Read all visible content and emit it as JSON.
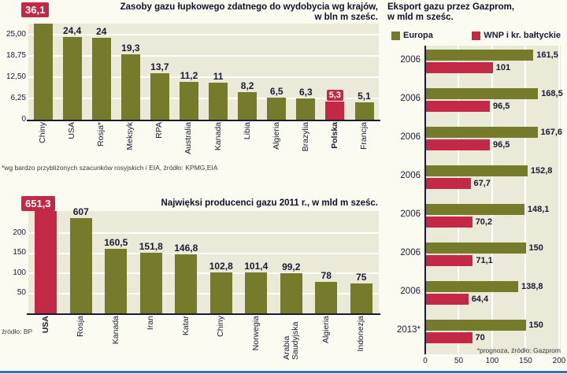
{
  "colors": {
    "olive": "#767a2b",
    "red": "#c32847",
    "plot_bg": "#ebe9d8",
    "text": "#1a1a33",
    "rule_blue": "#3470c2"
  },
  "chart_data": [
    {
      "id": "shale-gas-reserves",
      "type": "bar",
      "title_line1": "Zasoby gazu łupkowego zdatnego do wydobycia wg krajów,",
      "title_line2": "w bln m sześc.",
      "badge_label": "36,1",
      "ylim": [
        0,
        25
      ],
      "y_ticks": [
        "25,00",
        "18,75",
        "12,50",
        "6,25",
        "0"
      ],
      "categories": [
        "Chiny",
        "USA",
        "Rosja*",
        "Meksyk",
        "RPA",
        "Australia",
        "Kanada",
        "Libia",
        "Algieria",
        "Brazylia",
        "Polska",
        "Francja"
      ],
      "values": [
        36.1,
        24.4,
        24,
        19.3,
        13.7,
        11.2,
        11,
        8.2,
        6.5,
        6.3,
        5.3,
        5.1
      ],
      "labels": [
        "36,1",
        "24,4",
        "24",
        "19,3",
        "13,7",
        "11,2",
        "11",
        "8,2",
        "6,5",
        "6,3",
        "5,3",
        "5,1"
      ],
      "highlight_index": 10,
      "badge_index": 0,
      "footnote": "*wg bardzo przybliżonych szacunków rosyjskich i EIA, źródło: KPMG,EIA"
    },
    {
      "id": "gas-producers-2011",
      "type": "bar",
      "title": "Najwięksi producenci gazu 2011 r., w mld m sześc.",
      "badge_label": "651,3",
      "ylim": [
        0,
        200
      ],
      "y_ticks": [
        "200",
        "150",
        "100",
        "50"
      ],
      "categories": [
        "USA",
        "Rosja",
        "Kanada",
        "Iran",
        "Katar",
        "Chiny",
        "Norwegia",
        "Arabia Saudyjska",
        "Algieria",
        "Indonezja"
      ],
      "values": [
        651.3,
        607,
        160.5,
        151.8,
        146.8,
        102.8,
        101.4,
        99.2,
        78,
        75
      ],
      "labels": [
        "651,3",
        "607",
        "160,5",
        "151,8",
        "146,8",
        "102,8",
        "101,4",
        "99,2",
        "78",
        "75"
      ],
      "highlight_index": 0,
      "badge_index": 0,
      "source": "źródło: BP"
    },
    {
      "id": "gazprom-exports",
      "type": "bar-horizontal",
      "title_line1": "Eksport gazu przez Gazprom,",
      "title_line2": "w mld m sześc.",
      "legend": [
        {
          "label": "Europa",
          "color": "#767a2b"
        },
        {
          "label": "WNP i kr. bałtyckie",
          "color": "#c32847"
        }
      ],
      "xlim": [
        0,
        200
      ],
      "x_ticks": [
        "0",
        "50",
        "100",
        "150",
        "200"
      ],
      "rows": [
        {
          "year": "2006",
          "europa": 161.5,
          "europa_label": "161,5",
          "wnp": 101,
          "wnp_label": "101"
        },
        {
          "year": "2006",
          "europa": 168.5,
          "europa_label": "168,5",
          "wnp": 96.5,
          "wnp_label": "96,5"
        },
        {
          "year": "2006",
          "europa": 167.6,
          "europa_label": "167,6",
          "wnp": 96.5,
          "wnp_label": "96,5"
        },
        {
          "year": "2006",
          "europa": 152.8,
          "europa_label": "152,8",
          "wnp": 67.7,
          "wnp_label": "67,7"
        },
        {
          "year": "2006",
          "europa": 148.1,
          "europa_label": "148,1",
          "wnp": 70.2,
          "wnp_label": "70,2"
        },
        {
          "year": "2006",
          "europa": 150,
          "europa_label": "150",
          "wnp": 71.1,
          "wnp_label": "71,1"
        },
        {
          "year": "2006",
          "europa": 138.8,
          "europa_label": "138,8",
          "wnp": 64.4,
          "wnp_label": "64,4"
        },
        {
          "year": "2013*",
          "europa": 150,
          "europa_label": "150",
          "wnp": 70,
          "wnp_label": "70"
        }
      ],
      "footnote": "*prognoza, źródło: Gazprom"
    }
  ]
}
